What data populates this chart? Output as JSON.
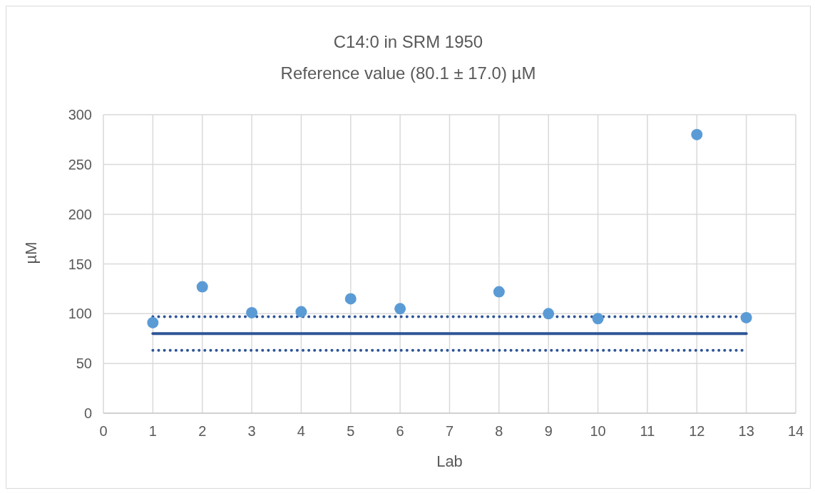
{
  "chart_data": {
    "type": "scatter",
    "title": "C14:0 in SRM 1950",
    "subtitle": "Reference value (80.1 ± 17.0) µM",
    "xlabel": "Lab",
    "ylabel": "µM",
    "series": [
      {
        "color": "#5b9bd5",
        "marker": "circle",
        "x": [
          1,
          2,
          3,
          4,
          5,
          6,
          8,
          9,
          10,
          12,
          13
        ],
        "values": [
          91,
          127,
          101,
          102,
          115,
          105,
          122,
          100,
          95,
          280,
          96
        ]
      },
      {
        "type": "line",
        "color": "#2f5597",
        "x": [
          1,
          13
        ],
        "values": [
          80.1,
          80.1
        ],
        "line_style": "solid",
        "marker": "none"
      },
      {
        "type": "line",
        "color": "#2f5597",
        "x": [
          1,
          13
        ],
        "values": [
          97.1,
          97.1
        ],
        "line_style": "dotted",
        "marker": "none"
      },
      {
        "type": "line",
        "color": "#2f5597",
        "x": [
          1,
          13
        ],
        "values": [
          63.1,
          63.1
        ],
        "line_style": "dotted",
        "marker": "none"
      }
    ],
    "xlim": [
      0,
      14
    ],
    "xticks": [
      0,
      1,
      2,
      3,
      4,
      5,
      6,
      7,
      8,
      9,
      10,
      11,
      12,
      13,
      14
    ],
    "ylim": [
      0,
      300
    ],
    "yticks": [
      0,
      50,
      100,
      150,
      200,
      250,
      300
    ],
    "grid": true
  }
}
